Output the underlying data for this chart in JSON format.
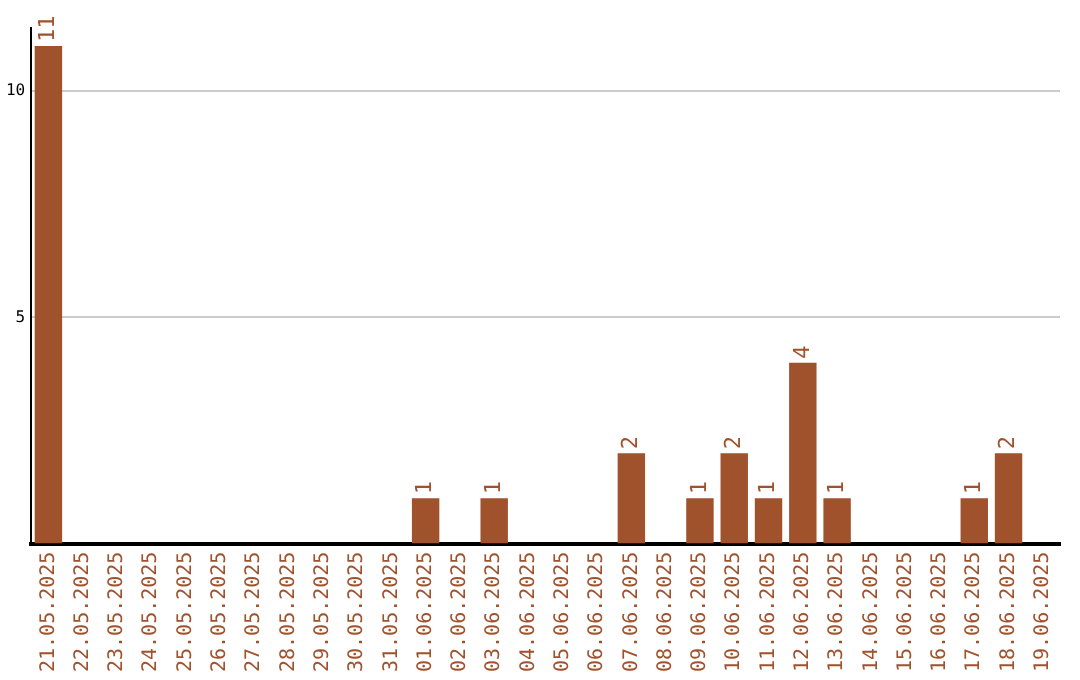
{
  "chart_data": {
    "type": "bar",
    "categories": [
      "21.05.2025",
      "22.05.2025",
      "23.05.2025",
      "24.05.2025",
      "25.05.2025",
      "26.05.2025",
      "27.05.2025",
      "28.05.2025",
      "29.05.2025",
      "30.05.2025",
      "31.05.2025",
      "01.06.2025",
      "02.06.2025",
      "03.06.2025",
      "04.06.2025",
      "05.06.2025",
      "06.06.2025",
      "07.06.2025",
      "08.06.2025",
      "09.06.2025",
      "10.06.2025",
      "11.06.2025",
      "12.06.2025",
      "13.06.2025",
      "14.06.2025",
      "15.06.2025",
      "16.06.2025",
      "17.06.2025",
      "18.06.2025",
      "19.06.2025"
    ],
    "values": [
      11,
      0,
      0,
      0,
      0,
      0,
      0,
      0,
      0,
      0,
      0,
      1,
      0,
      1,
      0,
      0,
      0,
      2,
      0,
      1,
      2,
      1,
      4,
      1,
      0,
      0,
      0,
      1,
      2,
      0
    ],
    "value_labels": [
      "11",
      null,
      null,
      null,
      null,
      null,
      null,
      null,
      null,
      null,
      null,
      "1",
      null,
      "1",
      null,
      null,
      null,
      "2",
      null,
      "1",
      "2",
      "1",
      "4",
      "1",
      null,
      null,
      null,
      "1",
      "2",
      null
    ],
    "color": "#a0522d",
    "ylim": [
      0,
      11.4
    ],
    "yticks": [
      5,
      10
    ],
    "grid": "y",
    "legend": false
  }
}
